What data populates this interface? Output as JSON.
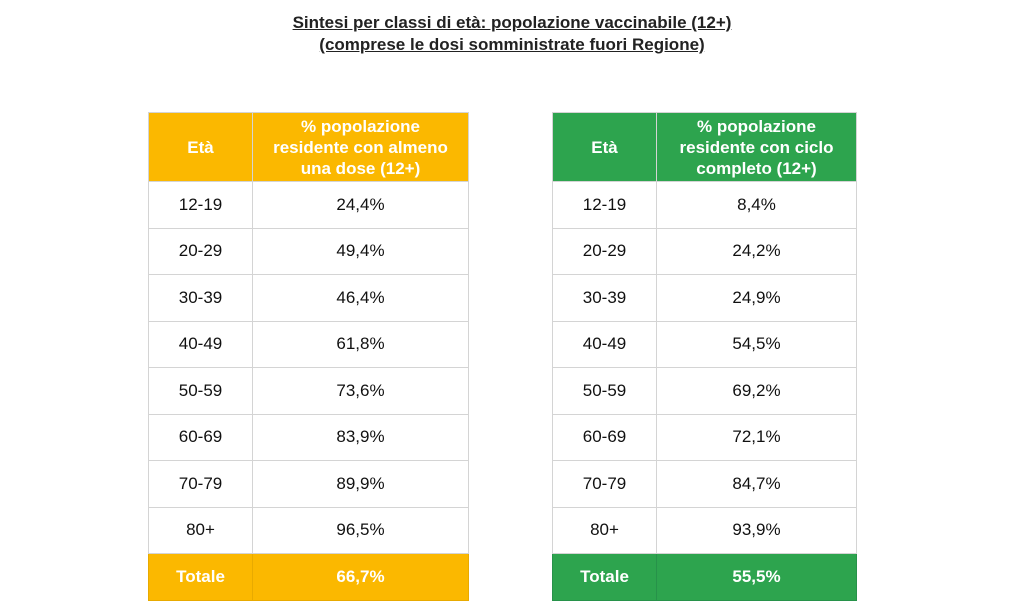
{
  "title": {
    "line1": "Sintesi per classi di età: popolazione vaccinabile (12+)",
    "line2": "(comprese le dosi somministrate fuori Regione)"
  },
  "colors": {
    "yellow_header": "#fbb800",
    "green_header": "#2da44e"
  },
  "left_table": {
    "age_header": "Età",
    "pct_header_lines": [
      "% popolazione",
      "residente con almeno",
      "una dose (12+)"
    ],
    "rows": [
      {
        "age": "12-19",
        "pct": "24,4%"
      },
      {
        "age": "20-29",
        "pct": "49,4%"
      },
      {
        "age": "30-39",
        "pct": "46,4%"
      },
      {
        "age": "40-49",
        "pct": "61,8%"
      },
      {
        "age": "50-59",
        "pct": "73,6%"
      },
      {
        "age": "60-69",
        "pct": "83,9%"
      },
      {
        "age": "70-79",
        "pct": "89,9%"
      },
      {
        "age": "80+",
        "pct": "96,5%"
      }
    ],
    "total_label": "Totale",
    "total_value": "66,7%"
  },
  "right_table": {
    "age_header": "Età",
    "pct_header_lines": [
      "% popolazione",
      "residente con ciclo",
      "completo (12+)"
    ],
    "rows": [
      {
        "age": "12-19",
        "pct": "8,4%"
      },
      {
        "age": "20-29",
        "pct": "24,2%"
      },
      {
        "age": "30-39",
        "pct": "24,9%"
      },
      {
        "age": "40-49",
        "pct": "54,5%"
      },
      {
        "age": "50-59",
        "pct": "69,2%"
      },
      {
        "age": "60-69",
        "pct": "72,1%"
      },
      {
        "age": "70-79",
        "pct": "84,7%"
      },
      {
        "age": "80+",
        "pct": "93,9%"
      }
    ],
    "total_label": "Totale",
    "total_value": "55,5%"
  }
}
